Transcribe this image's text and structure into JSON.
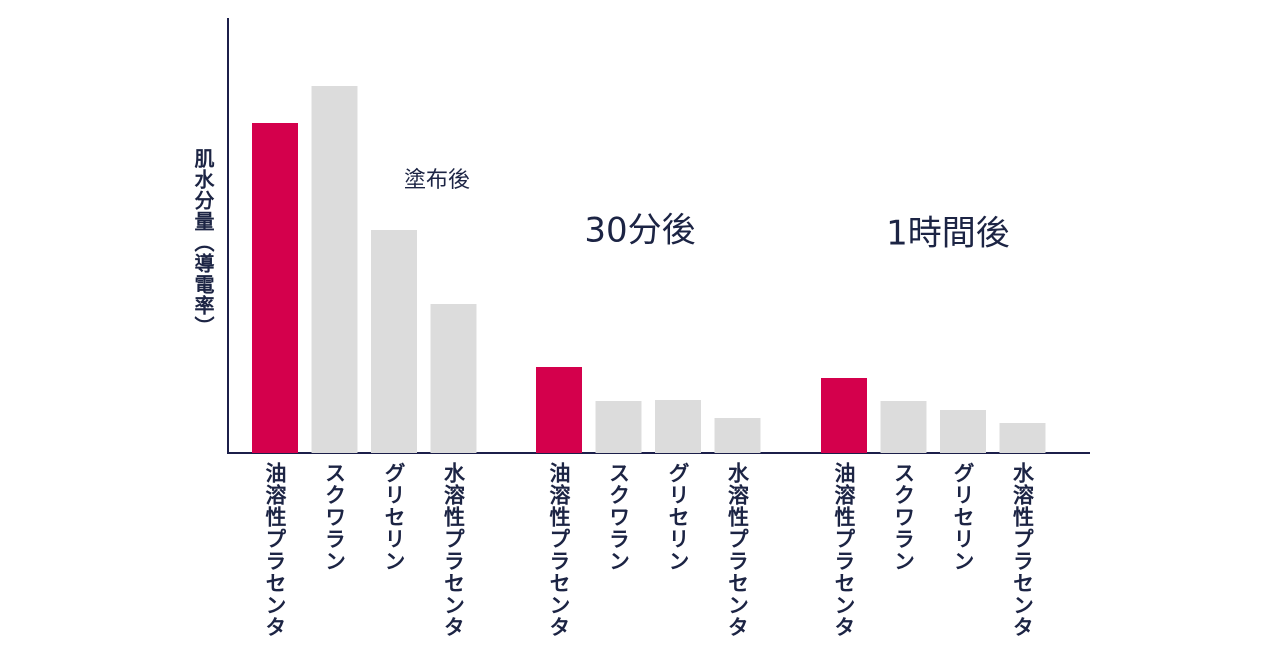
{
  "chart_data": {
    "type": "bar",
    "title": "",
    "ylabel": "肌水分量（導電率）",
    "xlabel": "",
    "ylim": [
      0,
      435
    ],
    "grid": false,
    "colors": {
      "highlight": "#d4004c",
      "other": "#dcdcdc",
      "axis": "#1c1f4a",
      "text": "#1c2444"
    },
    "groups": [
      {
        "title": "塗布後",
        "categories": [
          "油溶性プラセンタ",
          "スクワラン",
          "グリセリン",
          "水溶性プラセンタ"
        ],
        "values": [
          330,
          367,
          223,
          149
        ]
      },
      {
        "title": "30分後",
        "categories": [
          "油溶性プラセンタ",
          "スクワラン",
          "グリセリン",
          "水溶性プラセンタ"
        ],
        "values": [
          86,
          52,
          53,
          35
        ]
      },
      {
        "title": "1時間後",
        "categories": [
          "油溶性プラセンタ",
          "スクワラン",
          "グリセリン",
          "水溶性プラセンタ"
        ],
        "values": [
          75,
          52,
          43,
          30
        ]
      }
    ]
  }
}
